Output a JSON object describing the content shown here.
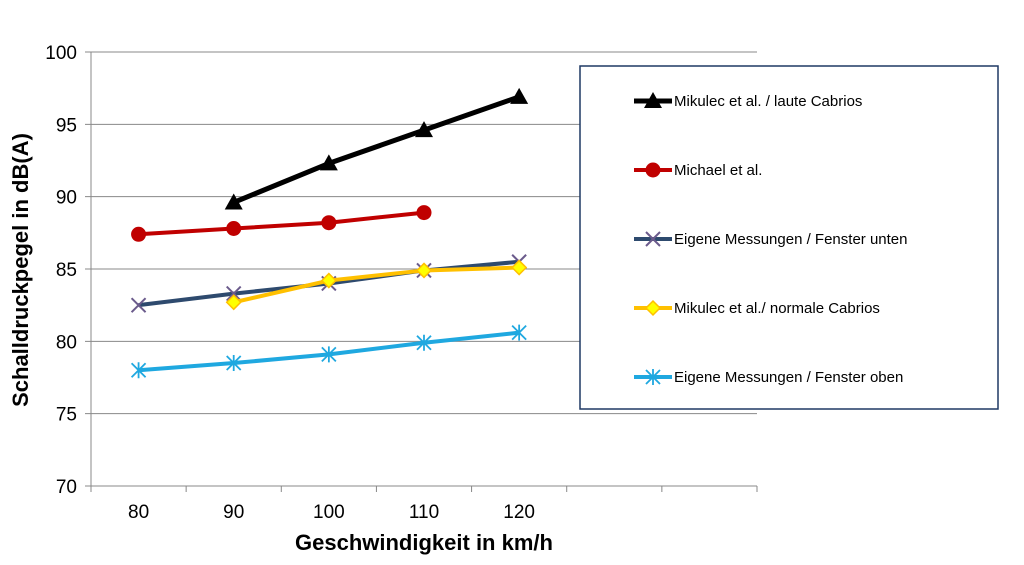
{
  "chart_data": {
    "type": "line",
    "title": "",
    "xlabel": "Geschwindigkeit  in  km/h",
    "ylabel": "Schalldruckpegel  in  dB(A)",
    "categories": [
      "80",
      "90",
      "100",
      "110",
      "120",
      "",
      ""
    ],
    "ylim": [
      70,
      100
    ],
    "yticks": [
      70,
      75,
      80,
      85,
      90,
      95,
      100
    ],
    "grid": true,
    "legend_position": "right",
    "series": [
      {
        "name": "Mikulec et al. / laute Cabrios",
        "color": "#000000",
        "marker": "triangle",
        "width": 5,
        "values": [
          null,
          89.6,
          92.3,
          94.6,
          96.9,
          null,
          null
        ]
      },
      {
        "name": "Michael et al.",
        "color": "#C00000",
        "marker": "circle",
        "width": 4,
        "values": [
          87.4,
          87.8,
          88.2,
          88.9,
          null,
          null,
          null
        ]
      },
      {
        "name": "Eigene Messungen / Fenster unten",
        "color": "#2E4A6E",
        "marker": "x",
        "width": 4,
        "values": [
          82.5,
          83.3,
          84.0,
          84.9,
          85.5,
          null,
          null
        ]
      },
      {
        "name": "Mikulec et al./ normale Cabrios",
        "color": "#FFC000",
        "marker": "diamond",
        "width": 4,
        "values": [
          null,
          82.7,
          84.2,
          84.9,
          85.1,
          null,
          null
        ]
      },
      {
        "name": "Eigene Messungen / Fenster oben",
        "color": "#1FA8E0",
        "marker": "star",
        "width": 4,
        "values": [
          78.0,
          78.5,
          79.1,
          79.9,
          80.6,
          null,
          null
        ]
      }
    ]
  }
}
